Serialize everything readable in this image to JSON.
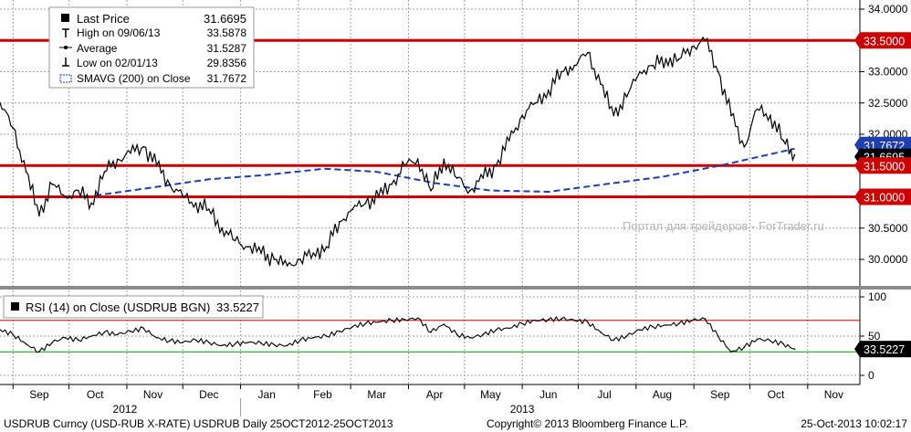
{
  "chart_data": [
    {
      "type": "line",
      "title": "",
      "legend": {
        "placement": "top-left",
        "entries": [
          {
            "label": "Last Price",
            "value": "31.6695",
            "marker": "filled-square"
          },
          {
            "label": "High on 09/06/13",
            "value": "33.5878",
            "marker": "high-tick"
          },
          {
            "label": "Average",
            "value": "31.5287",
            "marker": "dot-line"
          },
          {
            "label": "Low on 02/01/13",
            "value": "29.8356",
            "marker": "low-tick"
          },
          {
            "label": "SMAVG (200) on Close",
            "value": "31.7672",
            "marker": "dashed-box"
          }
        ]
      },
      "ylim": [
        29.6,
        34.1
      ],
      "y_ticks": [
        "30.0000",
        "30.5000",
        "31.0000",
        "31.5000",
        "32.0000",
        "32.5000",
        "33.0000",
        "33.5000",
        "34.0000"
      ],
      "y_tick_values": [
        30.0,
        30.5,
        31.0,
        31.5,
        32.0,
        32.5,
        33.0,
        33.5,
        34.0
      ],
      "horizontal_lines": [
        {
          "value": 33.5,
          "label": "33.5000",
          "color": "#cc0000"
        },
        {
          "value": 31.5,
          "label": "31.5000",
          "color": "#cc0000"
        },
        {
          "value": 31.0,
          "label": "31.0000",
          "color": "#cc0000"
        }
      ],
      "last_value_label": "31.6695",
      "sma_value_label": "31.7672",
      "grid": true,
      "series": [
        {
          "name": "Last Price",
          "color": "#000000",
          "x": [
            "2012-08-25",
            "2012-09-01",
            "2012-09-08",
            "2012-09-15",
            "2012-09-22",
            "2012-09-29",
            "2012-10-06",
            "2012-10-13",
            "2012-10-20",
            "2012-10-27",
            "2012-11-03",
            "2012-11-10",
            "2012-11-17",
            "2012-11-24",
            "2012-12-01",
            "2012-12-08",
            "2012-12-15",
            "2012-12-22",
            "2012-12-29",
            "2013-01-05",
            "2013-01-12",
            "2013-01-19",
            "2013-01-26",
            "2013-02-02",
            "2013-02-09",
            "2013-02-16",
            "2013-02-23",
            "2013-03-02",
            "2013-03-09",
            "2013-03-16",
            "2013-03-23",
            "2013-03-30",
            "2013-04-06",
            "2013-04-13",
            "2013-04-20",
            "2013-04-27",
            "2013-05-04",
            "2013-05-11",
            "2013-05-18",
            "2013-05-25",
            "2013-06-01",
            "2013-06-08",
            "2013-06-15",
            "2013-06-22",
            "2013-06-29",
            "2013-07-06",
            "2013-07-13",
            "2013-07-20",
            "2013-07-27",
            "2013-08-03",
            "2013-08-10",
            "2013-08-17",
            "2013-08-24",
            "2013-08-31",
            "2013-09-07",
            "2013-09-14",
            "2013-09-21",
            "2013-09-28",
            "2013-10-05",
            "2013-10-12",
            "2013-10-19",
            "2013-10-25"
          ],
          "values": [
            32.5,
            32.1,
            31.4,
            30.7,
            31.2,
            31.0,
            31.1,
            30.9,
            31.4,
            31.6,
            31.7,
            31.8,
            31.5,
            31.2,
            31.0,
            30.9,
            30.8,
            30.5,
            30.3,
            30.2,
            30.1,
            30.0,
            29.9,
            30.0,
            30.1,
            30.2,
            30.6,
            30.8,
            30.9,
            31.0,
            31.2,
            31.5,
            31.6,
            31.1,
            31.6,
            31.3,
            31.1,
            31.3,
            31.5,
            31.9,
            32.3,
            32.5,
            32.7,
            33.0,
            33.1,
            33.3,
            32.8,
            32.3,
            32.6,
            33.0,
            33.1,
            33.2,
            33.2,
            33.4,
            33.5,
            33.0,
            32.3,
            31.8,
            32.4,
            32.3,
            31.9,
            31.67
          ]
        },
        {
          "name": "SMAVG (200) on Close",
          "color": "#1f3fb0",
          "style": "dashed",
          "x": [
            "2012-10-15",
            "2012-11-15",
            "2012-12-15",
            "2013-01-15",
            "2013-02-15",
            "2013-03-15",
            "2013-04-15",
            "2013-05-15",
            "2013-06-15",
            "2013-07-15",
            "2013-08-15",
            "2013-09-15",
            "2013-10-25"
          ],
          "values": [
            31.02,
            31.15,
            31.28,
            31.35,
            31.45,
            31.4,
            31.22,
            31.1,
            31.08,
            31.2,
            31.32,
            31.5,
            31.77
          ]
        }
      ],
      "x_month_labels": [
        "Sep",
        "Oct",
        "Nov",
        "Dec",
        "Jan",
        "Feb",
        "Mar",
        "Apr",
        "May",
        "Jun",
        "Jul",
        "Aug",
        "Sep",
        "Oct",
        "Nov"
      ],
      "x_year_labels": [
        "2012",
        "2013"
      ],
      "watermark": "Портал для трейдеров - ForTrader.ru"
    },
    {
      "type": "line",
      "title": "",
      "legend": {
        "placement": "top-left",
        "entries": [
          {
            "label": "RSI (14) on Close (USDRUB BGN)",
            "value": "33.5227",
            "marker": "filled-square"
          }
        ]
      },
      "ylim": [
        0,
        100
      ],
      "y_ticks": [
        "0",
        "50",
        "100"
      ],
      "y_tick_values": [
        0,
        50,
        100
      ],
      "horizontal_lines": [
        {
          "value": 70,
          "color": "#cc0000"
        },
        {
          "value": 30,
          "color": "#009900"
        }
      ],
      "last_value_label": "33.5227",
      "series": [
        {
          "name": "RSI (14) on Close (USDRUB BGN)",
          "color": "#000000",
          "x": [
            "2012-08-25",
            "2012-09-01",
            "2012-09-08",
            "2012-09-15",
            "2012-09-22",
            "2012-09-29",
            "2012-10-06",
            "2012-10-13",
            "2012-10-20",
            "2012-10-27",
            "2012-11-03",
            "2012-11-10",
            "2012-11-17",
            "2012-11-24",
            "2012-12-01",
            "2012-12-08",
            "2012-12-15",
            "2012-12-22",
            "2012-12-29",
            "2013-01-05",
            "2013-01-12",
            "2013-01-19",
            "2013-01-26",
            "2013-02-02",
            "2013-02-09",
            "2013-02-16",
            "2013-02-23",
            "2013-03-02",
            "2013-03-09",
            "2013-03-16",
            "2013-03-23",
            "2013-03-30",
            "2013-04-06",
            "2013-04-13",
            "2013-04-20",
            "2013-04-27",
            "2013-05-04",
            "2013-05-11",
            "2013-05-18",
            "2013-05-25",
            "2013-06-01",
            "2013-06-08",
            "2013-06-15",
            "2013-06-22",
            "2013-06-29",
            "2013-07-06",
            "2013-07-13",
            "2013-07-20",
            "2013-07-27",
            "2013-08-03",
            "2013-08-10",
            "2013-08-17",
            "2013-08-24",
            "2013-08-31",
            "2013-09-07",
            "2013-09-14",
            "2013-09-21",
            "2013-09-28",
            "2013-10-05",
            "2013-10-12",
            "2013-10-19",
            "2013-10-25"
          ],
          "values": [
            58,
            52,
            40,
            30,
            42,
            48,
            45,
            50,
            55,
            52,
            56,
            60,
            48,
            44,
            42,
            45,
            42,
            38,
            40,
            42,
            41,
            39,
            38,
            45,
            48,
            50,
            56,
            62,
            66,
            68,
            70,
            71,
            73,
            55,
            65,
            52,
            48,
            52,
            58,
            60,
            66,
            70,
            71,
            72,
            70,
            68,
            55,
            45,
            50,
            58,
            62,
            64,
            66,
            70,
            72,
            50,
            30,
            36,
            46,
            44,
            40,
            33.52
          ]
        }
      ],
      "x_month_labels": [
        "Sep",
        "Oct",
        "Nov",
        "Dec",
        "Jan",
        "Feb",
        "Mar",
        "Apr",
        "May",
        "Jun",
        "Jul",
        "Aug",
        "Sep",
        "Oct",
        "Nov"
      ]
    }
  ],
  "footer": {
    "left": "USDRUB Curncy (USD-RUB X-RATE) USDRUB  Daily 25OCT2012-25OCT2013",
    "center": "Copyright© 2013 Bloomberg Finance L.P.",
    "right": "25-Oct-2013 10:02:17"
  }
}
